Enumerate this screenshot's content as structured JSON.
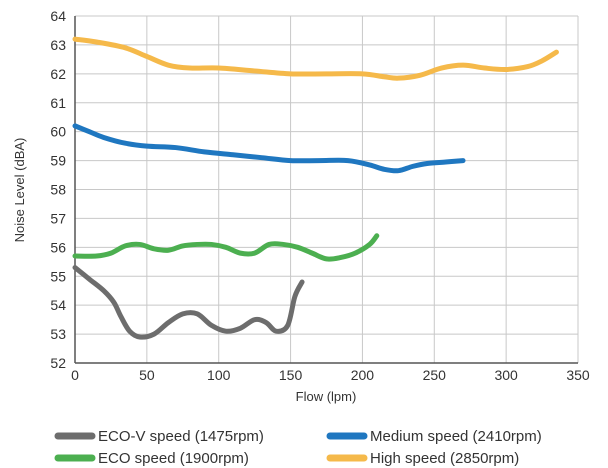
{
  "chart_data": {
    "type": "line",
    "title": "",
    "xlabel": "Flow (lpm)",
    "ylabel": "Noise Level (dBA)",
    "xlim": [
      0,
      350
    ],
    "ylim": [
      52,
      64
    ],
    "x_ticks": [
      0,
      50,
      100,
      150,
      200,
      250,
      300,
      350
    ],
    "y_ticks": [
      52,
      53,
      54,
      55,
      56,
      57,
      58,
      59,
      60,
      61,
      62,
      63,
      64
    ],
    "grid": true,
    "legend_position": "bottom",
    "series": [
      {
        "name": "ECO-V speed (1475rpm)",
        "color": "#6d6d6d",
        "points": [
          [
            0,
            55.3
          ],
          [
            10,
            54.9
          ],
          [
            20,
            54.5
          ],
          [
            27,
            54.1
          ],
          [
            32,
            53.6
          ],
          [
            38,
            53.1
          ],
          [
            45,
            52.9
          ],
          [
            55,
            53.0
          ],
          [
            65,
            53.4
          ],
          [
            75,
            53.7
          ],
          [
            85,
            53.7
          ],
          [
            95,
            53.3
          ],
          [
            105,
            53.1
          ],
          [
            115,
            53.2
          ],
          [
            125,
            53.5
          ],
          [
            133,
            53.4
          ],
          [
            140,
            53.1
          ],
          [
            148,
            53.3
          ],
          [
            153,
            54.3
          ],
          [
            158,
            54.8
          ]
        ]
      },
      {
        "name": "ECO speed (1900rpm)",
        "color": "#4caf50",
        "points": [
          [
            0,
            55.7
          ],
          [
            15,
            55.7
          ],
          [
            25,
            55.8
          ],
          [
            35,
            56.05
          ],
          [
            45,
            56.1
          ],
          [
            55,
            55.95
          ],
          [
            65,
            55.9
          ],
          [
            75,
            56.05
          ],
          [
            85,
            56.1
          ],
          [
            95,
            56.1
          ],
          [
            105,
            56.0
          ],
          [
            115,
            55.8
          ],
          [
            125,
            55.8
          ],
          [
            135,
            56.1
          ],
          [
            145,
            56.1
          ],
          [
            155,
            56.0
          ],
          [
            165,
            55.8
          ],
          [
            175,
            55.6
          ],
          [
            185,
            55.65
          ],
          [
            195,
            55.8
          ],
          [
            205,
            56.1
          ],
          [
            210,
            56.4
          ]
        ]
      },
      {
        "name": "Medium speed (2410rpm)",
        "color": "#1f77c0",
        "points": [
          [
            0,
            60.2
          ],
          [
            10,
            60.0
          ],
          [
            20,
            59.8
          ],
          [
            35,
            59.6
          ],
          [
            50,
            59.5
          ],
          [
            70,
            59.45
          ],
          [
            90,
            59.3
          ],
          [
            110,
            59.2
          ],
          [
            130,
            59.1
          ],
          [
            150,
            59.0
          ],
          [
            170,
            59.0
          ],
          [
            190,
            59.0
          ],
          [
            205,
            58.85
          ],
          [
            215,
            58.7
          ],
          [
            225,
            58.65
          ],
          [
            235,
            58.8
          ],
          [
            245,
            58.9
          ],
          [
            258,
            58.95
          ],
          [
            270,
            59.0
          ]
        ]
      },
      {
        "name": "High speed (2850rpm)",
        "color": "#f5b94a",
        "points": [
          [
            0,
            63.2
          ],
          [
            15,
            63.1
          ],
          [
            35,
            62.9
          ],
          [
            50,
            62.6
          ],
          [
            65,
            62.3
          ],
          [
            80,
            62.2
          ],
          [
            100,
            62.2
          ],
          [
            125,
            62.1
          ],
          [
            150,
            62.0
          ],
          [
            175,
            62.0
          ],
          [
            200,
            62.0
          ],
          [
            215,
            61.9
          ],
          [
            225,
            61.85
          ],
          [
            240,
            61.95
          ],
          [
            255,
            62.2
          ],
          [
            270,
            62.3
          ],
          [
            285,
            62.2
          ],
          [
            300,
            62.15
          ],
          [
            315,
            62.25
          ],
          [
            325,
            62.45
          ],
          [
            335,
            62.75
          ]
        ]
      }
    ]
  }
}
